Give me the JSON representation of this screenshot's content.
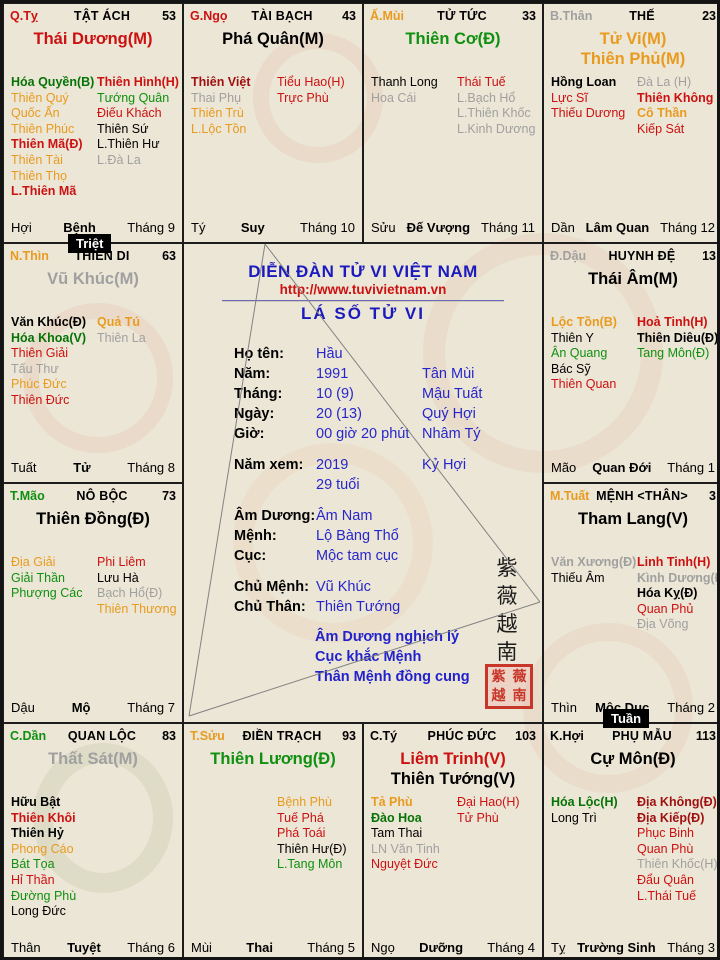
{
  "app": {
    "title": "Lá Số Tử Vi"
  },
  "colors": {
    "red": "#cc1111",
    "dark_red": "#a01010",
    "orange": "#e89b1f",
    "green": "#109010",
    "dark_green": "#067306",
    "gray": "#a0a0a0",
    "black": "#000000",
    "blue": "#2626cc",
    "bg": "#ece6d6"
  },
  "badges": {
    "triet": "Triệt",
    "tuan": "Tuần"
  },
  "center": {
    "forum_title": "DIỄN ĐÀN TỬ VI VIỆT NAM",
    "url": "http://www.tuvivietnam.vn",
    "chart_title": "LÁ SỐ TỬ VI",
    "info_rows": [
      {
        "label": "Họ tên:",
        "value": "Hầu",
        "extra": ""
      },
      {
        "label": "Năm:",
        "value": "1991",
        "extra": "Tân Mùi"
      },
      {
        "label": "Tháng:",
        "value": "10 (9)",
        "extra": "Mậu Tuất"
      },
      {
        "label": "Ngày:",
        "value": "20 (13)",
        "extra": "Quý Hợi"
      },
      {
        "label": "Giờ:",
        "value": "00 giờ 20 phút",
        "extra": "Nhâm Tý"
      },
      {
        "label": "Năm xem:",
        "value": "2019",
        "extra": "Kỷ Hợi",
        "gap": true
      },
      {
        "label": "",
        "value": "29 tuổi",
        "extra": ""
      },
      {
        "label": "Âm Dương:",
        "value": "Âm Nam",
        "extra": "",
        "gap": true
      },
      {
        "label": "Mệnh:",
        "value": "Lộ Bàng Thổ",
        "extra": ""
      },
      {
        "label": "Cục:",
        "value": "Mộc tam cục",
        "extra": ""
      },
      {
        "label": "Chủ Mệnh:",
        "value": "Vũ Khúc",
        "extra": "",
        "gap": true
      },
      {
        "label": "Chủ Thân:",
        "value": "Thiên Tướng",
        "extra": ""
      }
    ],
    "notes": [
      "Âm Dương nghịch lý",
      "Cục khắc Mệnh",
      "Thân Mệnh đồng cung"
    ],
    "vertical_text": [
      "紫",
      "薇",
      "越",
      "南"
    ],
    "seal_chars": [
      "紫",
      "薇",
      "越",
      "南"
    ]
  },
  "palaces": [
    {
      "tag": "Q.Tỵ",
      "tag_color": "red",
      "title": "TẬT ÁCH",
      "number": "53",
      "main_stars": [
        {
          "t": "Thái Dương(M)",
          "c": "red"
        }
      ],
      "left_stars": [
        {
          "t": "Hóa Quyền(B)",
          "c": "dark_green",
          "b": true
        },
        {
          "t": "Thiên Quý",
          "c": "orange"
        },
        {
          "t": "Quốc Ấn",
          "c": "orange"
        },
        {
          "t": "Thiên Phúc",
          "c": "orange"
        },
        {
          "t": "Thiên Mã(Đ)",
          "c": "red",
          "b": true
        },
        {
          "t": "Thiên Tài",
          "c": "orange"
        },
        {
          "t": "Thiên Thọ",
          "c": "orange"
        },
        {
          "t": "L.Thiên Mã",
          "c": "red",
          "b": true
        }
      ],
      "right_stars": [
        {
          "t": "Thiên Hình(H)",
          "c": "red",
          "b": true
        },
        {
          "t": "Tướng Quân",
          "c": "green"
        },
        {
          "t": "Điếu Khách",
          "c": "red"
        },
        {
          "t": "Thiên Sứ",
          "c": "black"
        },
        {
          "t": "L.Thiên Hư",
          "c": "black"
        },
        {
          "t": "L.Đà La",
          "c": "gray"
        }
      ],
      "branch": "Hợi",
      "stage": "Bệnh",
      "month": "Tháng 9"
    },
    {
      "tag": "G.Ngọ",
      "tag_color": "red",
      "title": "TÀI BẠCH",
      "number": "43",
      "main_stars": [
        {
          "t": "Phá Quân(M)",
          "c": "black"
        }
      ],
      "left_stars": [
        {
          "t": "Thiên Việt",
          "c": "dark_red",
          "b": true
        },
        {
          "t": "Thai Phụ",
          "c": "gray"
        },
        {
          "t": "Thiên Trù",
          "c": "orange"
        },
        {
          "t": "L.Lộc Tồn",
          "c": "orange"
        }
      ],
      "right_stars": [
        {
          "t": "Tiểu Hao(H)",
          "c": "red"
        },
        {
          "t": "Trực Phù",
          "c": "red"
        }
      ],
      "branch": "Tý",
      "stage": "Suy",
      "month": "Tháng 10"
    },
    {
      "tag": "Ấ.Mùi",
      "tag_color": "orange",
      "title": "TỬ TỨC",
      "number": "33",
      "main_stars": [
        {
          "t": "Thiên Cơ(Đ)",
          "c": "green"
        }
      ],
      "left_stars": [
        {
          "t": "Thanh Long",
          "c": "black"
        },
        {
          "t": "Hoa Cái",
          "c": "gray"
        }
      ],
      "right_stars": [
        {
          "t": "Thái Tuế",
          "c": "red"
        },
        {
          "t": "L.Bạch Hổ",
          "c": "gray"
        },
        {
          "t": "L.Thiên Khốc",
          "c": "gray"
        },
        {
          "t": "L.Kinh Dương",
          "c": "gray"
        }
      ],
      "branch": "Sửu",
      "stage": "Đế Vượng",
      "month": "Tháng 11"
    },
    {
      "tag": "B.Thân",
      "tag_color": "gray",
      "title": "THẾ",
      "number": "23",
      "main_stars": [
        {
          "t": "Tử Vi(M)",
          "c": "orange"
        },
        {
          "t": "Thiên Phủ(M)",
          "c": "orange"
        }
      ],
      "left_stars": [
        {
          "t": "Hồng Loan",
          "c": "black",
          "b": true
        },
        {
          "t": "Lực Sĩ",
          "c": "red"
        },
        {
          "t": "Thiếu Dương",
          "c": "red"
        }
      ],
      "right_stars": [
        {
          "t": "Đà La (H)",
          "c": "gray"
        },
        {
          "t": "Thiên Không",
          "c": "red",
          "b": true
        },
        {
          "t": "Cô Thần",
          "c": "orange",
          "b": true
        },
        {
          "t": "Kiếp Sát",
          "c": "red"
        }
      ],
      "branch": "Dần",
      "stage": "Lâm Quan",
      "month": "Tháng 12"
    },
    {
      "tag": "N.Thìn",
      "tag_color": "orange",
      "title": "THIÊN DI",
      "number": "63",
      "main_stars": [
        {
          "t": "Vũ Khúc(M)",
          "c": "gray"
        }
      ],
      "left_stars": [
        {
          "t": "Văn Khúc(Đ)",
          "c": "black",
          "b": true
        },
        {
          "t": "Hóa Khoa(V)",
          "c": "dark_green",
          "b": true
        },
        {
          "t": "Thiên Giải",
          "c": "red"
        },
        {
          "t": "Tấu Thư",
          "c": "gray"
        },
        {
          "t": "Phúc Đức",
          "c": "orange"
        },
        {
          "t": "Thiên Đức",
          "c": "red"
        }
      ],
      "right_stars": [
        {
          "t": "Quả Tú",
          "c": "orange",
          "b": true
        },
        {
          "t": "Thiên La",
          "c": "gray"
        }
      ],
      "branch": "Tuất",
      "stage": "Tử",
      "month": "Tháng 8"
    },
    {
      "tag": "Đ.Dậu",
      "tag_color": "gray",
      "title": "HUYNH ĐỆ",
      "number": "13",
      "main_stars": [
        {
          "t": "Thái Âm(M)",
          "c": "black"
        }
      ],
      "left_stars": [
        {
          "t": "Lộc Tồn(B)",
          "c": "orange",
          "b": true
        },
        {
          "t": "Thiên Y",
          "c": "black"
        },
        {
          "t": "Ân Quang",
          "c": "green"
        },
        {
          "t": "Bác Sỹ",
          "c": "black"
        },
        {
          "t": "Thiên Quan",
          "c": "red"
        }
      ],
      "right_stars": [
        {
          "t": "Hoả Tinh(H)",
          "c": "red",
          "b": true
        },
        {
          "t": "Thiên Diêu(Đ)",
          "c": "black",
          "b": true
        },
        {
          "t": "Tang Môn(Đ)",
          "c": "green"
        }
      ],
      "branch": "Mão",
      "stage": "Quan Đới",
      "month": "Tháng 1"
    },
    {
      "tag": "T.Mão",
      "tag_color": "green",
      "title": "NÔ BỘC",
      "number": "73",
      "main_stars": [
        {
          "t": "Thiên Đồng(Đ)",
          "c": "black"
        }
      ],
      "left_stars": [
        {
          "t": "Địa Giải",
          "c": "orange"
        },
        {
          "t": "Giải Thần",
          "c": "green"
        },
        {
          "t": "Phượng Các",
          "c": "green"
        }
      ],
      "right_stars": [
        {
          "t": "Phi Liêm",
          "c": "red"
        },
        {
          "t": "Lưu Hà",
          "c": "black"
        },
        {
          "t": "Bạch Hổ(Đ)",
          "c": "gray"
        },
        {
          "t": "Thiên Thương",
          "c": "orange"
        }
      ],
      "branch": "Dậu",
      "stage": "Mộ",
      "month": "Tháng 7"
    },
    {
      "tag": "M.Tuất",
      "tag_color": "orange",
      "title": "MỆNH <THÂN>",
      "number": "3",
      "main_stars": [
        {
          "t": "Tham Lang(V)",
          "c": "black"
        }
      ],
      "left_stars": [
        {
          "t": "Văn Xương(Đ)",
          "c": "gray",
          "b": true
        },
        {
          "t": "Thiếu Âm",
          "c": "black"
        }
      ],
      "right_stars": [
        {
          "t": "Linh Tinh(H)",
          "c": "red",
          "b": true
        },
        {
          "t": "Kình Dương(Đ)",
          "c": "gray",
          "b": true
        },
        {
          "t": "Hóa Kỵ(Đ)",
          "c": "black",
          "b": true
        },
        {
          "t": "Quan Phủ",
          "c": "red"
        },
        {
          "t": "Địa Võng",
          "c": "gray"
        }
      ],
      "branch": "Thìn",
      "stage": "Mộc Dục",
      "month": "Tháng 2"
    },
    {
      "tag": "C.Dần",
      "tag_color": "green",
      "title": "QUAN LỘC",
      "number": "83",
      "main_stars": [
        {
          "t": "Thất Sát(M)",
          "c": "gray"
        }
      ],
      "left_stars": [
        {
          "t": "Hữu Bật",
          "c": "black",
          "b": true
        },
        {
          "t": "Thiên Khôi",
          "c": "red",
          "b": true
        },
        {
          "t": "Thiên Hỷ",
          "c": "black",
          "b": true
        },
        {
          "t": "Phong Cáo",
          "c": "orange"
        },
        {
          "t": "Bát Tọa",
          "c": "green"
        },
        {
          "t": "Hỉ Thần",
          "c": "red"
        },
        {
          "t": "Đường Phù",
          "c": "green"
        },
        {
          "t": "Long Đức",
          "c": "black"
        }
      ],
      "right_stars": [],
      "branch": "Thân",
      "stage": "Tuyệt",
      "month": "Tháng 6"
    },
    {
      "tag": "T.Sửu",
      "tag_color": "orange",
      "title": "ĐIỀN TRẠCH",
      "number": "93",
      "main_stars": [
        {
          "t": "Thiên Lương(Đ)",
          "c": "green"
        }
      ],
      "left_stars": [],
      "right_stars": [
        {
          "t": "Bệnh Phù",
          "c": "orange"
        },
        {
          "t": "Tuế Phá",
          "c": "red"
        },
        {
          "t": "Phá Toái",
          "c": "red"
        },
        {
          "t": "Thiên Hư(Đ)",
          "c": "black"
        },
        {
          "t": "L.Tang Môn",
          "c": "green"
        }
      ],
      "branch": "Mùi",
      "stage": "Thai",
      "month": "Tháng 5"
    },
    {
      "tag": "C.Tý",
      "tag_color": "black",
      "title": "PHÚC ĐỨC",
      "number": "103",
      "main_stars": [
        {
          "t": "Liêm Trinh(V)",
          "c": "red"
        },
        {
          "t": "Thiên Tướng(V)",
          "c": "black"
        }
      ],
      "left_stars": [
        {
          "t": "Tả Phù",
          "c": "orange",
          "b": true
        },
        {
          "t": "Đào Hoa",
          "c": "dark_green",
          "b": true
        },
        {
          "t": "Tam Thai",
          "c": "black"
        },
        {
          "t": "LN Văn Tinh",
          "c": "gray"
        },
        {
          "t": "Nguyệt Đức",
          "c": "red"
        }
      ],
      "right_stars": [
        {
          "t": "Đại Hao(H)",
          "c": "red"
        },
        {
          "t": "Tử Phù",
          "c": "red"
        }
      ],
      "branch": "Ngọ",
      "stage": "Dưỡng",
      "month": "Tháng 4"
    },
    {
      "tag": "K.Hợi",
      "tag_color": "black",
      "title": "PHỤ MẪU",
      "number": "113",
      "main_stars": [
        {
          "t": "Cự Môn(Đ)",
          "c": "black"
        }
      ],
      "left_stars": [
        {
          "t": "Hóa Lộc(H)",
          "c": "dark_green",
          "b": true
        },
        {
          "t": "Long Trì",
          "c": "black"
        }
      ],
      "right_stars": [
        {
          "t": "Địa Không(Đ)",
          "c": "dark_red",
          "b": true
        },
        {
          "t": "Địa Kiếp(Đ)",
          "c": "dark_red",
          "b": true
        },
        {
          "t": "Phục Binh",
          "c": "red"
        },
        {
          "t": "Quan Phù",
          "c": "red"
        },
        {
          "t": "Thiên Khốc(H)",
          "c": "gray"
        },
        {
          "t": "Đẩu Quân",
          "c": "red"
        },
        {
          "t": "L.Thái Tuế",
          "c": "red"
        }
      ],
      "branch": "Tỵ",
      "stage": "Trường Sinh",
      "month": "Tháng 3"
    }
  ]
}
